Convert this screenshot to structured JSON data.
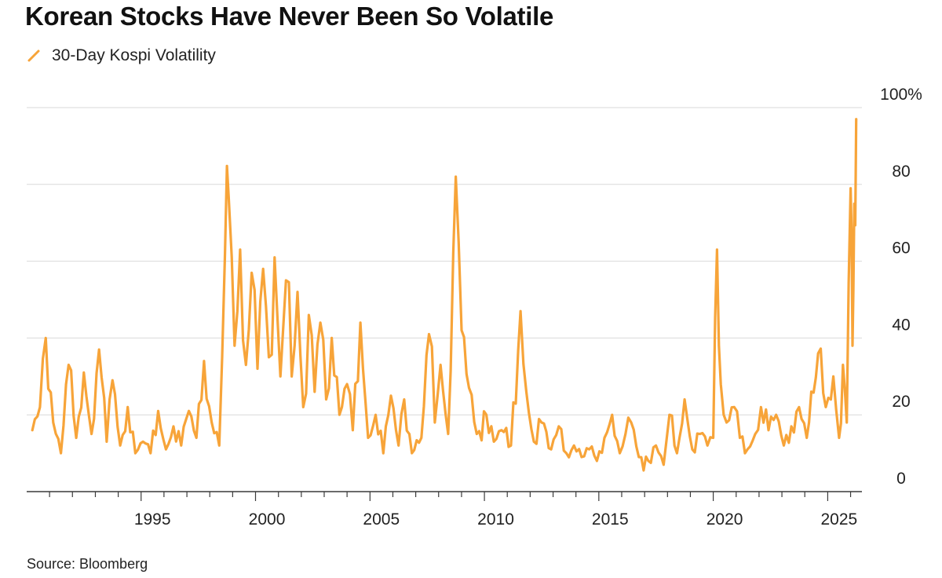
{
  "title": "Korean Stocks Have Never Been So Volatile",
  "source": "Source: Bloomberg",
  "colors": {
    "line": "#f7a439",
    "grid": "#d9d9d9",
    "axis": "#3a3a3a"
  },
  "chart_data": {
    "type": "line",
    "title": "Korean Stocks Have Never Been So Volatile",
    "xlabel": "",
    "ylabel": "",
    "ylim": [
      0,
      100
    ],
    "y_ticks": [
      0,
      20,
      40,
      60,
      80,
      100
    ],
    "y_tick_labels": [
      "0",
      "20",
      "40",
      "60",
      "80",
      "100%"
    ],
    "xlim": [
      "1990-01-01",
      "2026-07-01"
    ],
    "x_ticks": [
      "1995",
      "2000",
      "2005",
      "2010",
      "2015",
      "2020",
      "2025"
    ],
    "grid": true,
    "legend": "top-left",
    "series": [
      {
        "name": "30-Day Kospi Volatility",
        "points": [
          [
            "1990-04-01",
            16
          ],
          [
            "1990-08-01",
            22
          ],
          [
            "1990-11-01",
            40
          ],
          [
            "1991-03-01",
            18
          ],
          [
            "1991-07-01",
            10
          ],
          [
            "1991-11-01",
            33
          ],
          [
            "1992-03-01",
            14
          ],
          [
            "1992-07-01",
            31
          ],
          [
            "1992-11-01",
            15
          ],
          [
            "1993-03-01",
            37
          ],
          [
            "1993-07-01",
            13
          ],
          [
            "1993-10-01",
            29
          ],
          [
            "1994-02-01",
            12
          ],
          [
            "1994-06-01",
            22
          ],
          [
            "1994-10-01",
            10
          ],
          [
            "1995-02-01",
            13
          ],
          [
            "1995-06-01",
            10
          ],
          [
            "1995-10-01",
            21
          ],
          [
            "1996-02-01",
            11
          ],
          [
            "1996-06-01",
            17
          ],
          [
            "1996-10-01",
            12
          ],
          [
            "1997-02-01",
            21
          ],
          [
            "1997-06-01",
            14
          ],
          [
            "1997-10-01",
            34
          ],
          [
            "1998-02-01",
            18
          ],
          [
            "1998-06-01",
            12
          ],
          [
            "1998-09-01",
            62
          ],
          [
            "1998-11-01",
            76
          ],
          [
            "1999-02-01",
            38
          ],
          [
            "1999-05-01",
            63
          ],
          [
            "1999-08-01",
            33
          ],
          [
            "1999-11-01",
            57
          ],
          [
            "2000-02-01",
            32
          ],
          [
            "2000-05-01",
            58
          ],
          [
            "2000-08-01",
            35
          ],
          [
            "2000-11-01",
            61
          ],
          [
            "2001-02-01",
            30
          ],
          [
            "2001-05-01",
            55
          ],
          [
            "2001-08-01",
            30
          ],
          [
            "2001-11-01",
            52
          ],
          [
            "2002-02-01",
            22
          ],
          [
            "2002-05-01",
            46
          ],
          [
            "2002-08-01",
            26
          ],
          [
            "2002-11-01",
            44
          ],
          [
            "2003-02-01",
            24
          ],
          [
            "2003-05-01",
            40
          ],
          [
            "2003-09-01",
            20
          ],
          [
            "2004-01-01",
            28
          ],
          [
            "2004-04-01",
            16
          ],
          [
            "2004-08-01",
            44
          ],
          [
            "2004-12-01",
            14
          ],
          [
            "2005-04-01",
            20
          ],
          [
            "2005-08-01",
            10
          ],
          [
            "2005-12-01",
            25
          ],
          [
            "2006-04-01",
            12
          ],
          [
            "2006-07-01",
            24
          ],
          [
            "2006-11-01",
            10
          ],
          [
            "2007-04-01",
            14
          ],
          [
            "2007-08-01",
            41
          ],
          [
            "2007-11-01",
            18
          ],
          [
            "2008-02-01",
            33
          ],
          [
            "2008-06-01",
            15
          ],
          [
            "2008-10-01",
            82
          ],
          [
            "2009-01-01",
            42
          ],
          [
            "2009-05-01",
            27
          ],
          [
            "2009-09-01",
            15
          ],
          [
            "2010-02-01",
            20
          ],
          [
            "2010-06-01",
            13
          ],
          [
            "2010-10-01",
            16
          ],
          [
            "2011-03-01",
            12
          ],
          [
            "2011-08-01",
            47
          ],
          [
            "2011-11-01",
            26
          ],
          [
            "2012-03-01",
            13
          ],
          [
            "2012-07-01",
            18
          ],
          [
            "2012-12-01",
            11
          ],
          [
            "2013-04-01",
            17
          ],
          [
            "2013-08-01",
            10
          ],
          [
            "2013-12-01",
            12
          ],
          [
            "2014-04-01",
            9
          ],
          [
            "2014-08-01",
            11
          ],
          [
            "2014-12-01",
            8
          ],
          [
            "2015-04-01",
            14
          ],
          [
            "2015-08-01",
            20
          ],
          [
            "2015-12-01",
            10
          ],
          [
            "2016-03-01",
            15
          ],
          [
            "2016-06-01",
            18
          ],
          [
            "2016-10-01",
            9
          ],
          [
            "2017-03-01",
            8
          ],
          [
            "2017-07-01",
            12
          ],
          [
            "2017-11-01",
            7
          ],
          [
            "2018-02-01",
            20
          ],
          [
            "2018-06-01",
            10
          ],
          [
            "2018-10-01",
            24
          ],
          [
            "2019-02-01",
            11
          ],
          [
            "2019-06-01",
            15
          ],
          [
            "2019-10-01",
            12
          ],
          [
            "2020-01-01",
            14
          ],
          [
            "2020-03-01",
            63
          ],
          [
            "2020-05-01",
            28
          ],
          [
            "2020-08-01",
            18
          ],
          [
            "2020-12-01",
            22
          ],
          [
            "2021-03-01",
            14
          ],
          [
            "2021-07-01",
            11
          ],
          [
            "2021-11-01",
            15
          ],
          [
            "2022-02-01",
            22
          ],
          [
            "2022-06-01",
            16
          ],
          [
            "2022-10-01",
            20
          ],
          [
            "2023-02-01",
            12
          ],
          [
            "2023-06-01",
            17
          ],
          [
            "2023-10-01",
            22
          ],
          [
            "2024-02-01",
            14
          ],
          [
            "2024-08-01",
            36
          ],
          [
            "2024-12-01",
            22
          ],
          [
            "2025-04-01",
            30
          ],
          [
            "2025-07-01",
            14
          ],
          [
            "2025-09-01",
            33
          ],
          [
            "2025-11-01",
            18
          ],
          [
            "2026-01-01",
            79
          ],
          [
            "2026-02-01",
            38
          ],
          [
            "2026-03-01",
            75
          ],
          [
            "2026-04-01",
            97
          ]
        ]
      }
    ]
  }
}
